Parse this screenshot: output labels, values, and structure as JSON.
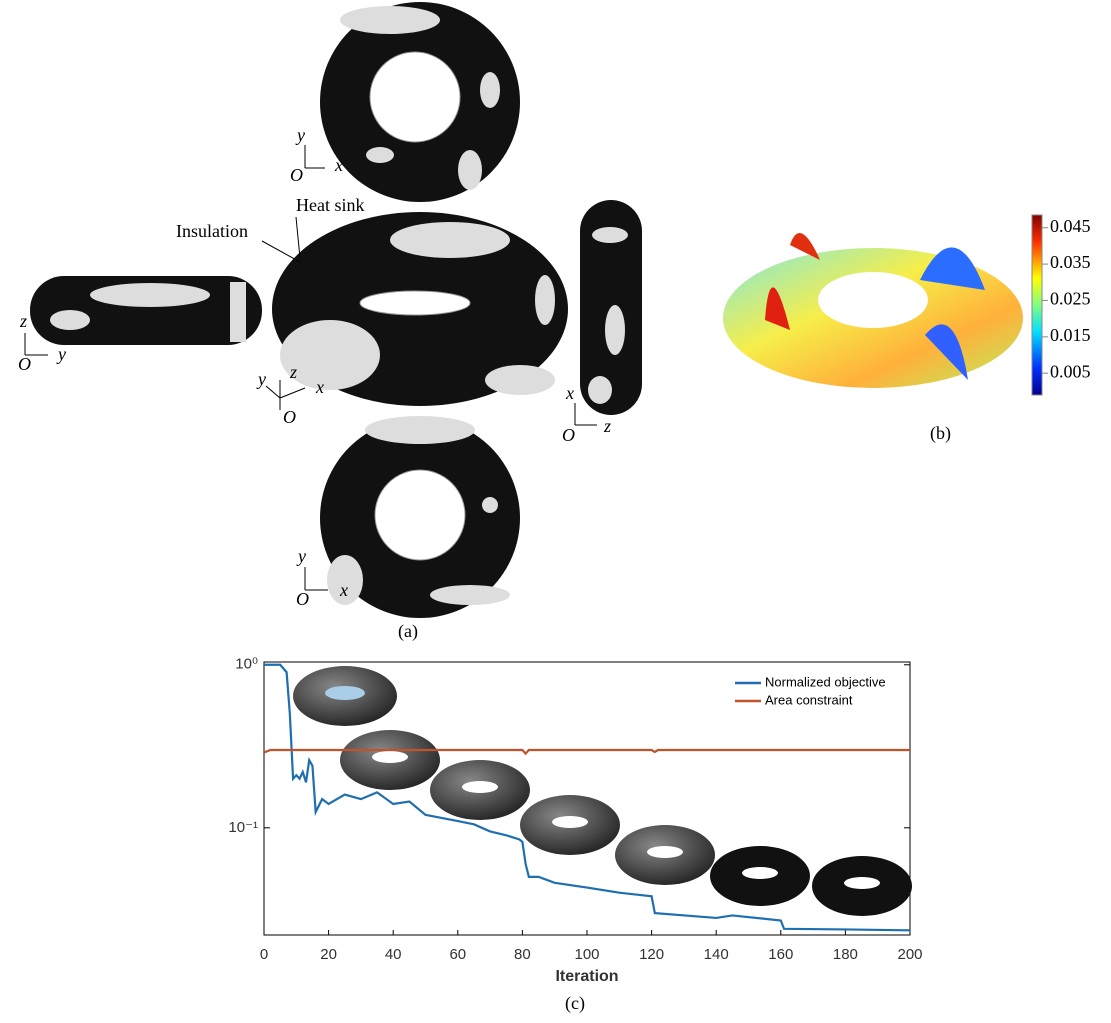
{
  "panel_a": {
    "caption": "(a)",
    "heat_sink_label": "Heat sink",
    "insulation_label": "Insulation",
    "triads": [
      {
        "labels": [
          "y",
          "x",
          "O"
        ]
      },
      {
        "labels": [
          "z",
          "y",
          "O"
        ]
      },
      {
        "labels": [
          "y",
          "z",
          "x",
          "O"
        ]
      },
      {
        "labels": [
          "x",
          "z",
          "O"
        ]
      },
      {
        "labels": [
          "y",
          "x",
          "O"
        ]
      }
    ]
  },
  "panel_b": {
    "caption": "(b)",
    "colorbar": {
      "lim": [
        -0.001,
        0.0485
      ],
      "ticks": [
        0.005,
        0.015,
        0.025,
        0.035,
        0.045
      ]
    }
  },
  "chart_data": {
    "type": "line",
    "caption": "(c)",
    "x_label": "Iteration",
    "xlim": [
      0,
      200
    ],
    "xticks": [
      0,
      20,
      40,
      60,
      80,
      100,
      120,
      140,
      160,
      180,
      200
    ],
    "ylim": [
      0.022,
      1.04
    ],
    "yticks": [
      {
        "value": 0.1,
        "label": "10⁻¹"
      },
      {
        "value": 1,
        "label": "10⁰"
      }
    ],
    "log_y": true,
    "legend": "top-right",
    "series": [
      {
        "name": "Normalized objective",
        "color": "#1f6fb0",
        "x": [
          0,
          5,
          7,
          8,
          9,
          10,
          11,
          12,
          13,
          14,
          15,
          16,
          18,
          20,
          25,
          30,
          35,
          40,
          45,
          50,
          55,
          60,
          65,
          70,
          75,
          79,
          80,
          81,
          82,
          85,
          90,
          100,
          110,
          120,
          121,
          140,
          145,
          160,
          161,
          180,
          200
        ],
        "values": [
          1.0,
          1.0,
          0.9,
          0.5,
          0.2,
          0.21,
          0.2,
          0.22,
          0.19,
          0.26,
          0.24,
          0.125,
          0.15,
          0.14,
          0.16,
          0.15,
          0.165,
          0.14,
          0.145,
          0.12,
          0.115,
          0.11,
          0.105,
          0.095,
          0.09,
          0.085,
          0.082,
          0.06,
          0.05,
          0.05,
          0.046,
          0.043,
          0.04,
          0.038,
          0.03,
          0.028,
          0.029,
          0.027,
          0.024,
          0.0238,
          0.0235
        ]
      },
      {
        "name": "Area constraint",
        "color": "#c0532b",
        "x": [
          0,
          2,
          5,
          40,
          80,
          81,
          82,
          120,
          121,
          122,
          200
        ],
        "values": [
          0.29,
          0.3,
          0.3,
          0.3,
          0.3,
          0.285,
          0.3,
          0.3,
          0.292,
          0.3,
          0.3
        ]
      }
    ]
  }
}
